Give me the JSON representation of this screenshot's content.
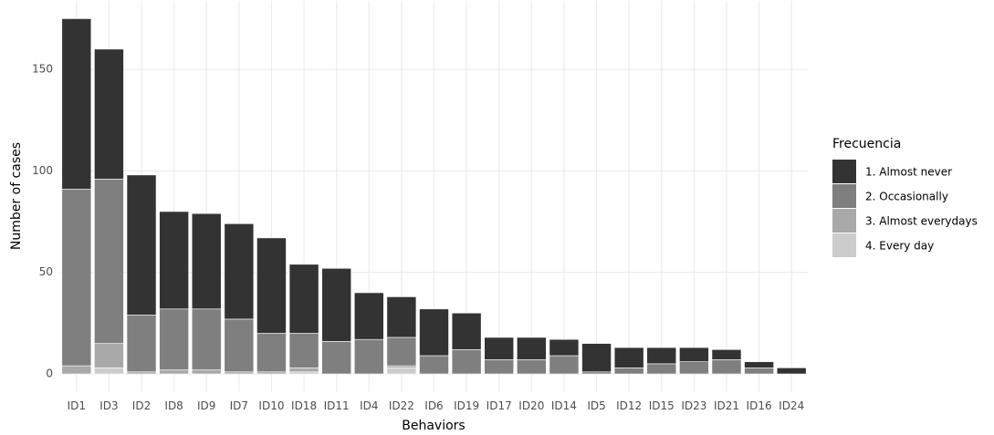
{
  "chart_data": {
    "type": "stacked_bar",
    "x_label": "Behaviors",
    "y_label": "Number of cases",
    "legend_title": "Frecuencia",
    "legend_position": "right",
    "grid": true,
    "categories": [
      "ID1",
      "ID3",
      "ID2",
      "ID8",
      "ID9",
      "ID7",
      "ID10",
      "ID18",
      "ID11",
      "ID4",
      "ID22",
      "ID6",
      "ID19",
      "ID17",
      "ID20",
      "ID14",
      "ID5",
      "ID12",
      "ID15",
      "ID23",
      "ID21",
      "ID16",
      "ID24"
    ],
    "series": [
      {
        "name": "1. Almost never",
        "color": "#333333",
        "values": [
          84,
          64,
          69,
          48,
          47,
          47,
          47,
          34,
          36,
          23,
          20,
          23,
          18,
          11,
          11,
          8,
          14,
          10,
          8,
          7,
          5,
          3,
          3
        ]
      },
      {
        "name": "2. Occasionally",
        "color": "#7f7f7f",
        "values": [
          87,
          81,
          28,
          30,
          30,
          26,
          19,
          17,
          16,
          17,
          14,
          9,
          12,
          7,
          7,
          9,
          1,
          3,
          5,
          6,
          7,
          3,
          0
        ]
      },
      {
        "name": "3. Almost everydays",
        "color": "#a9a9a9",
        "values": [
          4,
          12,
          1,
          2,
          2,
          1,
          1,
          2,
          0,
          0,
          1,
          0,
          0,
          0,
          0,
          0,
          0,
          0,
          0,
          0,
          0,
          0,
          0
        ]
      },
      {
        "name": "4. Every day",
        "color": "#cccccc",
        "values": [
          0,
          3,
          0,
          0,
          0,
          0,
          0,
          1,
          0,
          0,
          3,
          0,
          0,
          0,
          0,
          0,
          0,
          0,
          0,
          0,
          0,
          0,
          0
        ]
      }
    ],
    "ylim": [
      -8.75,
      183.75
    ],
    "yticks": [
      0,
      50,
      100,
      150
    ]
  }
}
